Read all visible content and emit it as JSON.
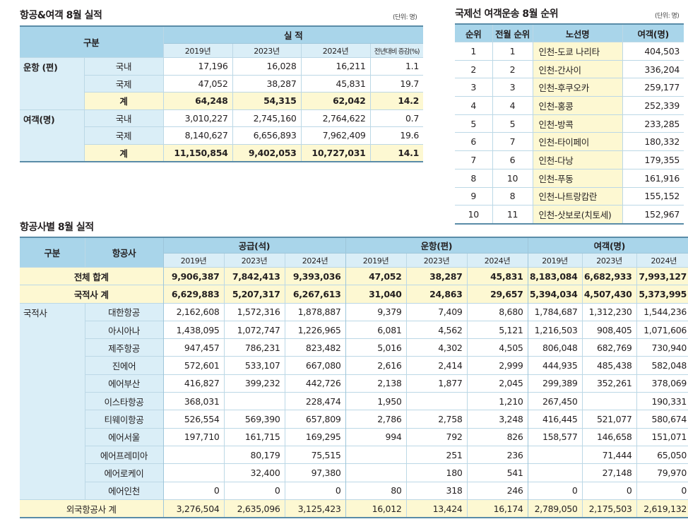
{
  "section1": {
    "title": "항공&여객 8월 실적",
    "unit": "(단위: 명)",
    "header": {
      "category": "구분",
      "group": "실 적",
      "cols": [
        "2019년",
        "2023년",
        "2024년",
        "전년대비 증감(%)"
      ]
    },
    "groups": [
      {
        "label": "운항 (편)",
        "rows": [
          {
            "sub": "국내",
            "values": [
              "17,196",
              "16,028",
              "16,211",
              "1.1"
            ]
          },
          {
            "sub": "국제",
            "values": [
              "47,052",
              "38,287",
              "45,831",
              "19.7"
            ]
          },
          {
            "sub": "계",
            "values": [
              "64,248",
              "54,315",
              "62,042",
              "14.2"
            ]
          }
        ]
      },
      {
        "label": "여객(명)",
        "rows": [
          {
            "sub": "국내",
            "values": [
              "3,010,227",
              "2,745,160",
              "2,764,622",
              "0.7"
            ]
          },
          {
            "sub": "국제",
            "values": [
              "8,140,627",
              "6,656,893",
              "7,962,409",
              "19.6"
            ]
          },
          {
            "sub": "계",
            "values": [
              "11,150,854",
              "9,402,053",
              "10,727,031",
              "14.1"
            ]
          }
        ]
      }
    ]
  },
  "section2": {
    "title": "국제선 여객운송 8월 순위",
    "unit": "(단위: 명)",
    "headers": [
      "순위",
      "전월 순위",
      "노선명",
      "여객(명)"
    ],
    "rows": [
      [
        "1",
        "1",
        "인천-도쿄 나리타",
        "404,503"
      ],
      [
        "2",
        "2",
        "인천-간사이",
        "336,204"
      ],
      [
        "3",
        "3",
        "인천-후쿠오카",
        "259,177"
      ],
      [
        "4",
        "4",
        "인천-홍콩",
        "252,339"
      ],
      [
        "5",
        "5",
        "인천-방콕",
        "233,285"
      ],
      [
        "6",
        "7",
        "인천-타이페이",
        "180,332"
      ],
      [
        "7",
        "6",
        "인천-다낭",
        "179,355"
      ],
      [
        "8",
        "10",
        "인천-푸동",
        "161,916"
      ],
      [
        "9",
        "8",
        "인천-나트랑캄란",
        "155,152"
      ],
      [
        "10",
        "11",
        "인천-삿보로(치토세)",
        "152,967"
      ]
    ]
  },
  "section3": {
    "title": "항공사별 8월 실적",
    "header": {
      "category": "구분",
      "airline": "항공사",
      "groups": [
        "공급(석)",
        "운항(편)",
        "여객(명)"
      ],
      "years": [
        "2019년",
        "2023년",
        "2024년"
      ]
    },
    "total": {
      "label": "전체 합계",
      "values": [
        "9,906,387",
        "7,842,413",
        "9,393,036",
        "47,052",
        "38,287",
        "45,831",
        "8,183,084",
        "6,682,933",
        "7,993,127"
      ]
    },
    "domestic_total": {
      "label": "국적사 계",
      "values": [
        "6,629,883",
        "5,207,317",
        "6,267,613",
        "31,040",
        "24,863",
        "29,657",
        "5,394,034",
        "4,507,430",
        "5,373,995"
      ]
    },
    "domestic_label": "국적사",
    "airlines": [
      {
        "name": "대한항공",
        "values": [
          "2,162,608",
          "1,572,316",
          "1,878,887",
          "9,379",
          "7,409",
          "8,680",
          "1,784,687",
          "1,312,230",
          "1,544,236"
        ]
      },
      {
        "name": "아시아나",
        "values": [
          "1,438,095",
          "1,072,747",
          "1,226,965",
          "6,081",
          "4,562",
          "5,121",
          "1,216,503",
          "908,405",
          "1,071,606"
        ]
      },
      {
        "name": "제주항공",
        "values": [
          "947,457",
          "786,231",
          "823,482",
          "5,016",
          "4,302",
          "4,505",
          "806,048",
          "682,769",
          "730,940"
        ]
      },
      {
        "name": "진에어",
        "values": [
          "572,601",
          "533,107",
          "667,080",
          "2,616",
          "2,414",
          "2,999",
          "444,935",
          "485,438",
          "582,048"
        ]
      },
      {
        "name": "에어부산",
        "values": [
          "416,827",
          "399,232",
          "442,726",
          "2,138",
          "1,877",
          "2,045",
          "299,389",
          "352,261",
          "378,069"
        ]
      },
      {
        "name": "이스타항공",
        "values": [
          "368,031",
          "",
          "228,474",
          "1,950",
          "",
          "1,210",
          "267,450",
          "",
          "190,331"
        ]
      },
      {
        "name": "티웨이항공",
        "values": [
          "526,554",
          "569,390",
          "657,809",
          "2,786",
          "2,758",
          "3,248",
          "416,445",
          "521,077",
          "580,674"
        ]
      },
      {
        "name": "에어서울",
        "values": [
          "197,710",
          "161,715",
          "169,295",
          "994",
          "792",
          "826",
          "158,577",
          "146,658",
          "151,071"
        ]
      },
      {
        "name": "에어프레미아",
        "values": [
          "",
          "80,179",
          "75,515",
          "",
          "251",
          "236",
          "",
          "71,444",
          "65,050"
        ]
      },
      {
        "name": "에어로케이",
        "values": [
          "",
          "32,400",
          "97,380",
          "",
          "180",
          "541",
          "",
          "27,148",
          "79,970"
        ]
      },
      {
        "name": "에어인천",
        "values": [
          "0",
          "0",
          "0",
          "80",
          "318",
          "246",
          "0",
          "0",
          "0"
        ]
      }
    ],
    "foreign_total": {
      "label": "외국항공사 계",
      "values": [
        "3,276,504",
        "2,635,096",
        "3,125,423",
        "16,012",
        "13,424",
        "16,174",
        "2,789,050",
        "2,175,503",
        "2,619,132"
      ]
    }
  }
}
